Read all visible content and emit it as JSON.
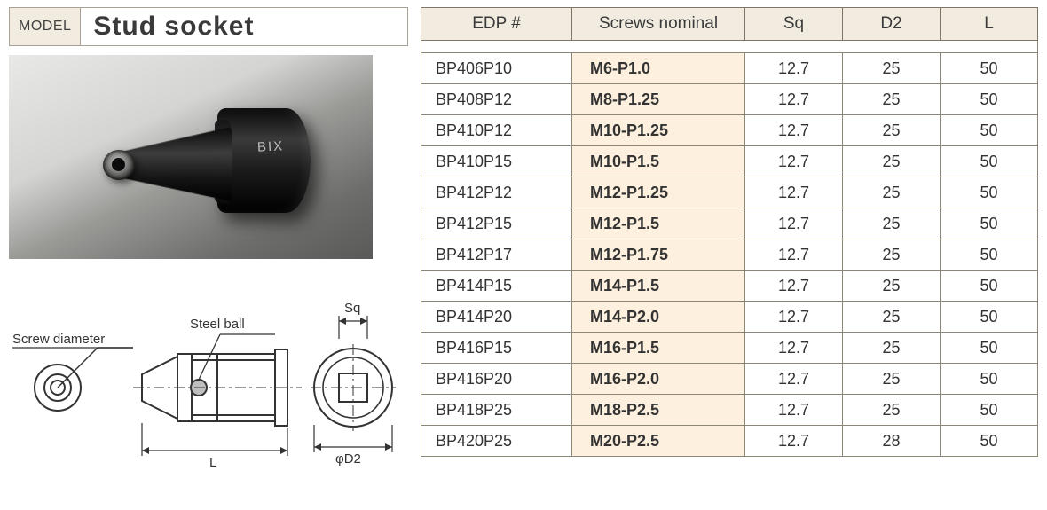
{
  "model_tag": "MODEL",
  "title": "Stud socket",
  "product_marking": "BIX",
  "diagram": {
    "screw_diameter_label": "Screw diameter",
    "steel_ball_label": "Steel ball",
    "sq_label": "Sq",
    "L_label": "L",
    "d2_label": "φD2",
    "stroke": "#333333",
    "fill": "#ffffff",
    "text_size": 15
  },
  "table": {
    "columns": [
      "EDP #",
      "Screws nominal",
      "Sq",
      "D2",
      "L"
    ],
    "col_keys": [
      "edp",
      "nominal",
      "sq",
      "d2",
      "l"
    ],
    "header_bg": "#f2ece0",
    "nominal_bg": "#fdf0de",
    "border_color": "#7d7667",
    "cell_border": "#8c8677",
    "font_size": 18,
    "rows": [
      {
        "edp": "BP406P10",
        "nominal": "M6-P1.0",
        "sq": "12.7",
        "d2": "25",
        "l": "50"
      },
      {
        "edp": "BP408P12",
        "nominal": "M8-P1.25",
        "sq": "12.7",
        "d2": "25",
        "l": "50"
      },
      {
        "edp": "BP410P12",
        "nominal": "M10-P1.25",
        "sq": "12.7",
        "d2": "25",
        "l": "50"
      },
      {
        "edp": "BP410P15",
        "nominal": "M10-P1.5",
        "sq": "12.7",
        "d2": "25",
        "l": "50"
      },
      {
        "edp": "BP412P12",
        "nominal": "M12-P1.25",
        "sq": "12.7",
        "d2": "25",
        "l": "50"
      },
      {
        "edp": "BP412P15",
        "nominal": "M12-P1.5",
        "sq": "12.7",
        "d2": "25",
        "l": "50"
      },
      {
        "edp": "BP412P17",
        "nominal": "M12-P1.75",
        "sq": "12.7",
        "d2": "25",
        "l": "50"
      },
      {
        "edp": "BP414P15",
        "nominal": "M14-P1.5",
        "sq": "12.7",
        "d2": "25",
        "l": "50"
      },
      {
        "edp": "BP414P20",
        "nominal": "M14-P2.0",
        "sq": "12.7",
        "d2": "25",
        "l": "50"
      },
      {
        "edp": "BP416P15",
        "nominal": "M16-P1.5",
        "sq": "12.7",
        "d2": "25",
        "l": "50"
      },
      {
        "edp": "BP416P20",
        "nominal": "M16-P2.0",
        "sq": "12.7",
        "d2": "25",
        "l": "50"
      },
      {
        "edp": "BP418P25",
        "nominal": "M18-P2.5",
        "sq": "12.7",
        "d2": "25",
        "l": "50"
      },
      {
        "edp": "BP420P25",
        "nominal": "M20-P2.5",
        "sq": "12.7",
        "d2": "28",
        "l": "50"
      }
    ]
  }
}
